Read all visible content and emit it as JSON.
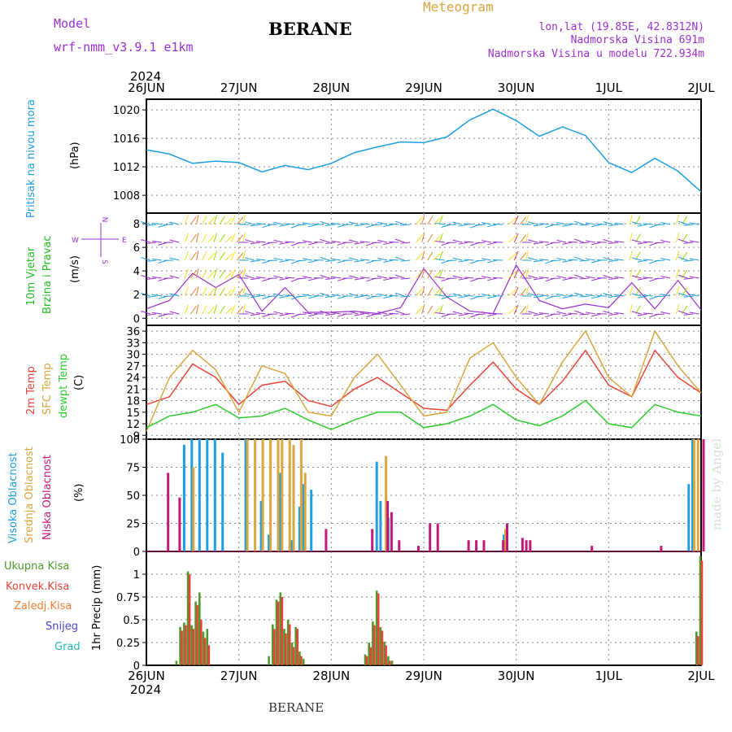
{
  "header": {
    "model_label": "Model",
    "model_name": "wrf-nmm_v3.9.1 e1km",
    "title": "BERANE",
    "meteogram_label": "Meteogram",
    "coords": "lon,lat (19.85E, 42.8312N)",
    "elevation": "Nadmorska Visina 691m",
    "model_elevation": "Nadmorska Visina u modelu 722.934m",
    "year_top": "2024",
    "year_bottom": "2024",
    "footer": "BERANE",
    "watermark": "made by Angel"
  },
  "colors": {
    "pressure": "#1e9fe0",
    "wind_label": "#22bb22",
    "wind_unit": "#9b30d0",
    "temp2m": "#e8433a",
    "sfc": "#d9a640",
    "dewpt": "#2ecc2e",
    "high_cloud": "#1e9fe0",
    "mid_cloud": "#d9a640",
    "low_cloud": "#c2187a",
    "total_precip": "#4d9a2a",
    "conv_precip": "#e8433a",
    "ice": "#f08030",
    "snow": "#4444cc",
    "hail": "#22bbbb"
  },
  "x_axis": {
    "ticks": [
      "26JUN",
      "27JUN",
      "28JUN",
      "29JUN",
      "30JUN",
      "1JUL",
      "2JUL"
    ]
  },
  "panels": {
    "pressure": {
      "label": "Pritisak na nivou mora",
      "unit": "(hPa)"
    },
    "wind": {
      "label1": "10m Vjetar",
      "label2": "Brzina i Pravac",
      "unit": "(m/s)",
      "compass_n": "N",
      "compass_s": "S",
      "compass_w": "W",
      "compass_e": "E"
    },
    "temp": {
      "label_2m": "2m Temp",
      "label_sfc": "SFC Temp",
      "label_dew": "dewpt Temp",
      "unit": "(C)"
    },
    "cloud": {
      "label_high": "Visoka Oblacnost",
      "label_mid": "Srednja Oblacnost",
      "label_low": "Niska Oblacnost",
      "unit": "(%)"
    },
    "precip": {
      "legend": [
        "Ukupna Kisa",
        "Konvek.Kisa",
        "Zaledj.Kisa",
        "Snijeg",
        "Grad"
      ],
      "unit": "1hr Precip (mm)"
    }
  },
  "chart_data": [
    {
      "type": "line",
      "title": "",
      "ylabel": "(hPa)",
      "ylim": [
        1005.5,
        1021.5
      ],
      "yticks": [
        1008,
        1012,
        1016,
        1020
      ],
      "x": [
        0,
        6,
        12,
        18,
        24,
        30,
        36,
        42,
        48,
        54,
        60,
        66,
        72,
        78,
        84,
        90,
        96,
        102,
        108,
        114,
        120,
        126,
        132,
        138,
        144
      ],
      "series": [
        {
          "name": "Pritisak na nivou mora",
          "values": [
            1014.4,
            1013.8,
            1012.5,
            1012.8,
            1012.6,
            1011.3,
            1012.2,
            1011.6,
            1012.5,
            1014.0,
            1014.8,
            1015.5,
            1015.4,
            1016.2,
            1018.6,
            1020.1,
            1018.5,
            1016.3,
            1017.6,
            1016.4,
            1012.6,
            1011.2,
            1013.2,
            1011.4,
            1008.5
          ]
        }
      ]
    },
    {
      "type": "line",
      "title": "",
      "ylabel": "(m/s)",
      "ylim": [
        -0.6,
        8.9
      ],
      "yticks": [
        0,
        2,
        4,
        6,
        8
      ],
      "x": [
        0,
        6,
        12,
        18,
        24,
        30,
        36,
        42,
        48,
        54,
        60,
        66,
        72,
        78,
        84,
        90,
        96,
        102,
        108,
        114,
        120,
        126,
        132,
        138,
        144
      ],
      "series": [
        {
          "name": "10m Vjetar",
          "values": [
            0.8,
            1.5,
            3.8,
            2.6,
            3.7,
            0.6,
            2.6,
            0.5,
            0.5,
            0.6,
            0.4,
            0.9,
            4.2,
            1.8,
            0.6,
            0.4,
            4.5,
            1.5,
            0.8,
            1.2,
            0.9,
            3.0,
            0.8,
            3.2,
            0.7
          ]
        }
      ]
    },
    {
      "type": "line",
      "title": "",
      "ylabel": "(C)",
      "ylim": [
        8,
        37.5
      ],
      "yticks": [
        9,
        12,
        15,
        18,
        21,
        24,
        27,
        30,
        33,
        36
      ],
      "x": [
        0,
        6,
        12,
        18,
        24,
        30,
        36,
        42,
        48,
        54,
        60,
        66,
        72,
        78,
        84,
        90,
        96,
        102,
        108,
        114,
        120,
        126,
        132,
        138,
        144
      ],
      "series": [
        {
          "name": "2m Temp",
          "values": [
            17,
            19,
            27.5,
            24,
            17,
            22,
            23,
            18,
            16.5,
            21,
            24,
            20,
            16,
            15.5,
            22,
            28,
            21,
            17,
            23,
            31,
            22,
            19,
            31,
            24,
            20
          ]
        },
        {
          "name": "SFC Temp",
          "values": [
            10,
            24,
            31,
            26,
            15,
            27,
            25,
            15,
            14,
            24,
            30,
            22,
            14,
            15,
            29,
            33,
            24,
            17,
            28,
            36,
            24,
            19,
            36,
            27,
            20
          ]
        },
        {
          "name": "dewpt Temp",
          "values": [
            11,
            14,
            15,
            17,
            13.5,
            14,
            16,
            13,
            10.5,
            13,
            15,
            15,
            11,
            12,
            14,
            17,
            13,
            11.5,
            14,
            18,
            12,
            11,
            17,
            15,
            14
          ]
        }
      ]
    },
    {
      "type": "bar",
      "title": "",
      "ylabel": "(%)",
      "ylim": [
        0,
        100
      ],
      "yticks": [
        0,
        25,
        50,
        75,
        100
      ],
      "x": [
        5,
        8,
        10,
        12,
        14,
        16,
        18,
        20,
        22,
        23,
        26,
        28,
        30,
        32,
        34,
        35,
        37,
        38,
        40,
        41,
        43,
        46,
        48,
        50,
        58,
        60,
        61,
        62,
        63,
        65,
        70,
        73,
        75,
        83,
        85,
        87,
        92,
        93,
        97,
        98,
        99,
        100,
        107,
        113,
        115,
        120,
        133,
        141,
        142,
        143,
        144
      ],
      "series": [
        {
          "name": "Visoka Oblacnost",
          "values": [
            0,
            0,
            95,
            100,
            100,
            100,
            100,
            88,
            0,
            0,
            100,
            0,
            45,
            15,
            0,
            70,
            0,
            10,
            40,
            60,
            55,
            0,
            0,
            0,
            0,
            80,
            45,
            0,
            30,
            0,
            0,
            0,
            0,
            0,
            0,
            0,
            0,
            15,
            0,
            0,
            0,
            0,
            0,
            0,
            0,
            0,
            0,
            60,
            100,
            0,
            0
          ]
        },
        {
          "name": "Srednja Oblacnost",
          "values": [
            0,
            0,
            0,
            75,
            0,
            0,
            0,
            0,
            0,
            0,
            100,
            100,
            100,
            100,
            100,
            100,
            100,
            95,
            100,
            70,
            0,
            0,
            0,
            0,
            0,
            0,
            0,
            85,
            0,
            0,
            0,
            0,
            0,
            0,
            0,
            0,
            0,
            20,
            0,
            0,
            0,
            0,
            0,
            0,
            0,
            0,
            0,
            0,
            100,
            100,
            0
          ]
        },
        {
          "name": "Niska Oblacnost",
          "values": [
            70,
            48,
            0,
            0,
            0,
            0,
            0,
            0,
            0,
            0,
            0,
            0,
            0,
            0,
            0,
            0,
            0,
            0,
            0,
            0,
            0,
            20,
            0,
            0,
            20,
            0,
            0,
            45,
            35,
            10,
            5,
            25,
            25,
            10,
            10,
            10,
            10,
            25,
            12,
            10,
            10,
            0,
            0,
            0,
            5,
            0,
            5,
            0,
            0,
            0,
            100
          ]
        }
      ]
    },
    {
      "type": "bar",
      "title": "",
      "ylabel": "1hr Precip (mm)",
      "ylim": [
        0,
        1.25
      ],
      "yticks": [
        0,
        0.25,
        0.5,
        0.75,
        1
      ],
      "x": [
        8,
        9,
        10,
        11,
        12,
        13,
        14,
        15,
        16,
        32,
        33,
        34,
        35,
        36,
        37,
        38,
        39,
        40,
        41,
        57,
        58,
        59,
        60,
        61,
        62,
        63,
        64,
        143,
        144
      ],
      "series": [
        {
          "name": "Ukupna Kisa",
          "values": [
            0.05,
            0.42,
            0.47,
            1.03,
            0.44,
            0.7,
            0.8,
            0.37,
            0.4,
            0.1,
            0.45,
            0.72,
            0.8,
            0.4,
            0.5,
            0.25,
            0.42,
            0.15,
            0.07,
            0.12,
            0.25,
            0.48,
            0.82,
            0.42,
            0.26,
            0.1,
            0.05,
            0.37,
            1.2
          ]
        },
        {
          "name": "Konvek.Kisa",
          "values": [
            0,
            0.38,
            0.44,
            1.0,
            0.4,
            0.66,
            0.5,
            0.3,
            0.22,
            0,
            0.4,
            0.7,
            0.75,
            0.35,
            0.45,
            0.2,
            0.4,
            0.1,
            0,
            0.1,
            0.2,
            0.44,
            0.79,
            0.38,
            0.22,
            0.05,
            0,
            0.32,
            1.15
          ]
        }
      ]
    }
  ]
}
